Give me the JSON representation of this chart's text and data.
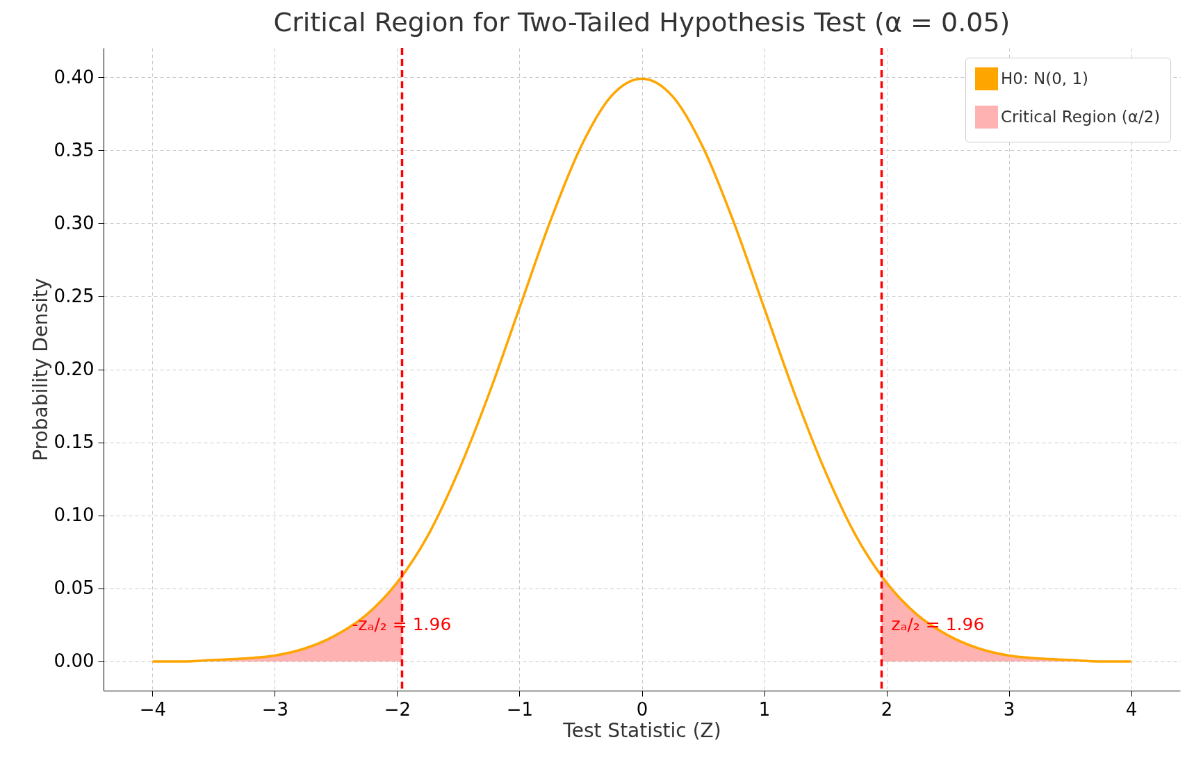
{
  "chart_data": {
    "type": "line",
    "title": "Critical Region for Two-Tailed Hypothesis Test (α = 0.05)",
    "xlabel": "Test Statistic (Z)",
    "ylabel": "Probability Density",
    "xlim": [
      -4.4,
      4.4
    ],
    "ylim": [
      -0.02,
      0.42
    ],
    "xticks": [
      {
        "value": -4,
        "label": "−4"
      },
      {
        "value": -3,
        "label": "−3"
      },
      {
        "value": -2,
        "label": "−2"
      },
      {
        "value": -1,
        "label": "−1"
      },
      0,
      1,
      2,
      3,
      4
    ],
    "yticks": [
      {
        "value": 0,
        "label": "0.00"
      },
      0.05,
      {
        "value": 0.1,
        "label": "0.10"
      },
      0.15,
      {
        "value": 0.2,
        "label": "0.20"
      },
      0.25,
      {
        "value": 0.3,
        "label": "0.30"
      },
      0.35,
      {
        "value": 0.4,
        "label": "0.40"
      }
    ],
    "grid": true,
    "legend": "top right",
    "series": [
      {
        "name": "H0: N(0, 1)",
        "color": "#ffa500",
        "x": [
          -4,
          -3.75,
          -3.5,
          -3.25,
          -3,
          -2.75,
          -2.5,
          -2.25,
          -2,
          -1.75,
          -1.5,
          -1.25,
          -1,
          -0.75,
          -0.5,
          -0.25,
          0,
          0.25,
          0.5,
          0.75,
          1,
          1.25,
          1.5,
          1.75,
          2,
          2.25,
          2.5,
          2.75,
          3,
          3.25,
          3.5,
          3.75,
          4
        ],
        "values": [
          0.0,
          0.0,
          0.001,
          0.002,
          0.004,
          0.009,
          0.018,
          0.032,
          0.054,
          0.086,
          0.13,
          0.183,
          0.242,
          0.301,
          0.352,
          0.387,
          0.399,
          0.387,
          0.352,
          0.301,
          0.242,
          0.183,
          0.13,
          0.086,
          0.054,
          0.032,
          0.018,
          0.009,
          0.004,
          0.002,
          0.001,
          0.0,
          0.0
        ]
      },
      {
        "name": "Critical Region (α/2)",
        "type": "area",
        "color": "#ffb2b2",
        "x": [
          -4,
          -3.75,
          -3.5,
          -3.25,
          -3,
          -2.75,
          -2.5,
          -2.25,
          -2,
          -1.96
        ],
        "values": [
          0.0,
          0.0,
          0.001,
          0.002,
          0.004,
          0.009,
          0.018,
          0.032,
          0.054,
          0.058
        ]
      },
      {
        "type": "area",
        "color": "#ffb2b2",
        "x": [
          1.96,
          2,
          2.25,
          2.5,
          2.75,
          3,
          3.25,
          3.5,
          3.75,
          4
        ],
        "values": [
          0.058,
          0.054,
          0.032,
          0.018,
          0.009,
          0.004,
          0.002,
          0.001,
          0.0,
          0.0
        ]
      }
    ],
    "ref_lines": [
      {
        "axis": "x",
        "value": -1.96,
        "color": "#ff0000",
        "line_style": "dashed"
      },
      {
        "axis": "x",
        "value": 1.96,
        "color": "#ff0000",
        "line_style": "dashed"
      }
    ],
    "annotations": [
      "-zₐ/₂ = 1.96",
      "zₐ/₂ = 1.96"
    ]
  }
}
